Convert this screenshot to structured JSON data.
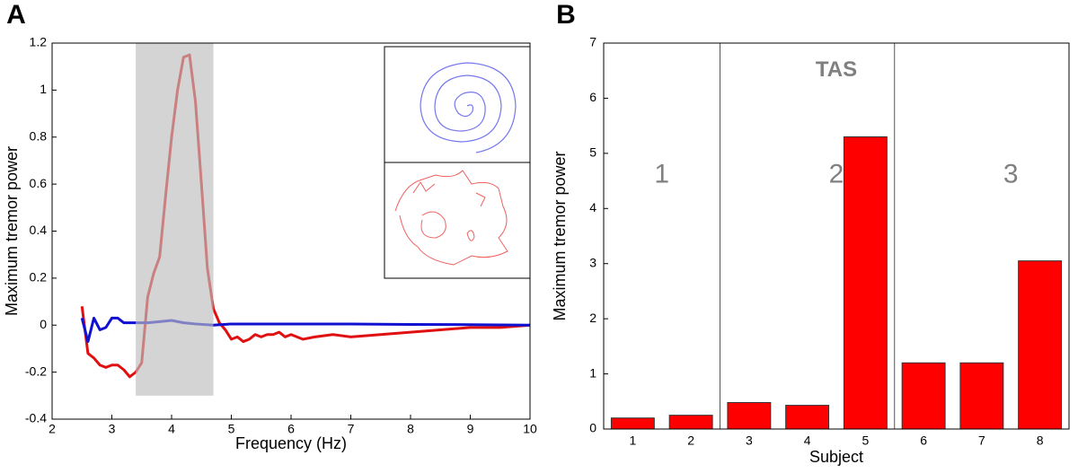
{
  "chart_data": [
    {
      "type": "line",
      "panel_label": "A",
      "xlabel": "Frequency (Hz)",
      "ylabel": "Maximum tremor power",
      "xlim": [
        2,
        10
      ],
      "ylim": [
        -0.4,
        1.2
      ],
      "xticks": [
        2,
        3,
        4,
        5,
        6,
        7,
        8,
        9,
        10
      ],
      "yticks": [
        -0.4,
        -0.2,
        0,
        0.2,
        0.4,
        0.6,
        0.8,
        1,
        1.2
      ],
      "shaded_region": {
        "xlim": [
          3.4,
          4.7
        ],
        "ylim": [
          -0.3,
          1.2
        ],
        "color": "#bdbdbd"
      },
      "series": [
        {
          "color": "#e01010",
          "x": [
            2.5,
            2.55,
            2.6,
            2.7,
            2.8,
            2.9,
            3.0,
            3.1,
            3.2,
            3.3,
            3.4,
            3.5,
            3.6,
            3.7,
            3.8,
            3.9,
            4.0,
            4.1,
            4.2,
            4.3,
            4.4,
            4.5,
            4.6,
            4.7,
            4.8,
            4.9,
            5.0,
            5.1,
            5.2,
            5.3,
            5.4,
            5.5,
            5.6,
            5.7,
            5.8,
            5.9,
            6.0,
            6.2,
            6.4,
            6.7,
            7.0,
            7.5,
            8.0,
            8.5,
            9.0,
            9.5,
            10
          ],
          "values": [
            0.08,
            -0.02,
            -0.12,
            -0.14,
            -0.17,
            -0.18,
            -0.17,
            -0.17,
            -0.19,
            -0.22,
            -0.2,
            -0.16,
            0.12,
            0.22,
            0.29,
            0.55,
            0.8,
            1.0,
            1.14,
            1.15,
            0.95,
            0.6,
            0.24,
            0.07,
            0.01,
            -0.02,
            -0.06,
            -0.05,
            -0.07,
            -0.06,
            -0.04,
            -0.05,
            -0.04,
            -0.04,
            -0.03,
            -0.05,
            -0.04,
            -0.06,
            -0.05,
            -0.04,
            -0.05,
            -0.04,
            -0.03,
            -0.02,
            -0.01,
            -0.01,
            0
          ]
        },
        {
          "color": "#1010d0",
          "x": [
            2.5,
            2.6,
            2.7,
            2.8,
            2.9,
            3.0,
            3.1,
            3.2,
            3.4,
            3.6,
            3.8,
            4.0,
            4.2,
            4.4,
            4.7,
            5.0,
            6.0,
            7.0,
            8.0,
            9.0,
            10
          ],
          "values": [
            0.03,
            -0.07,
            0.03,
            -0.02,
            -0.01,
            0.03,
            0.03,
            0.01,
            0.01,
            0.01,
            0.015,
            0.02,
            0.01,
            0.005,
            0,
            0.005,
            0.005,
            0.005,
            0.003,
            0.002,
            0
          ]
        }
      ]
    },
    {
      "type": "bar",
      "panel_label": "B",
      "xlabel": "Subject",
      "ylabel": "Maximum tremor power",
      "categories": [
        "1",
        "2",
        "3",
        "4",
        "5",
        "6",
        "7",
        "8"
      ],
      "values": [
        0.2,
        0.25,
        0.48,
        0.43,
        5.3,
        1.2,
        1.2,
        3.05
      ],
      "color": "#ff0000",
      "ylim": [
        0,
        7
      ],
      "yticks": [
        0,
        1,
        2,
        3,
        4,
        5,
        6,
        7
      ],
      "annotations": [
        "TAS",
        "1",
        "2",
        "3"
      ]
    }
  ]
}
